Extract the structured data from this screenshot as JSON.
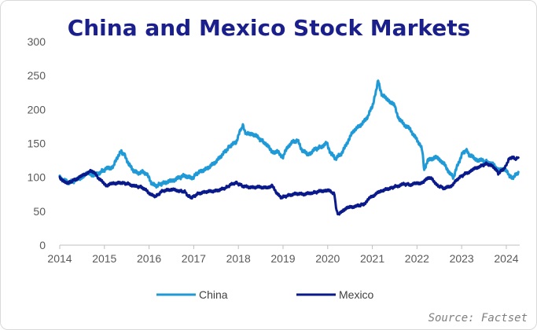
{
  "chart_data": {
    "type": "line",
    "title": "China and Mexico Stock Markets",
    "source": "Source: Factset",
    "xlim": [
      2014,
      2024.3
    ],
    "ylim": [
      0,
      300
    ],
    "x_ticks": [
      "2014",
      "2015",
      "2016",
      "2017",
      "2018",
      "2019",
      "2020",
      "2021",
      "2022",
      "2023",
      "2024"
    ],
    "y_ticks": [
      "0",
      "50",
      "100",
      "150",
      "200",
      "250",
      "300"
    ],
    "legend_position": "bottom",
    "grid": false,
    "series": [
      {
        "name": "China",
        "color": "#1f9ad6",
        "points": [
          [
            2014.0,
            100
          ],
          [
            2014.08,
            96
          ],
          [
            2014.2,
            92
          ],
          [
            2014.35,
            95
          ],
          [
            2014.5,
            101
          ],
          [
            2014.65,
            106
          ],
          [
            2014.78,
            103
          ],
          [
            2014.9,
            107
          ],
          [
            2015.05,
            113
          ],
          [
            2015.2,
            116
          ],
          [
            2015.3,
            131
          ],
          [
            2015.38,
            138
          ],
          [
            2015.45,
            133
          ],
          [
            2015.55,
            119
          ],
          [
            2015.65,
            110
          ],
          [
            2015.75,
            106
          ],
          [
            2015.85,
            108
          ],
          [
            2015.95,
            105
          ],
          [
            2016.05,
            92
          ],
          [
            2016.15,
            87
          ],
          [
            2016.3,
            91
          ],
          [
            2016.5,
            95
          ],
          [
            2016.65,
            99
          ],
          [
            2016.8,
            103
          ],
          [
            2016.95,
            98
          ],
          [
            2017.1,
            107
          ],
          [
            2017.3,
            113
          ],
          [
            2017.5,
            123
          ],
          [
            2017.7,
            138
          ],
          [
            2017.85,
            148
          ],
          [
            2017.95,
            152
          ],
          [
            2018.05,
            170
          ],
          [
            2018.1,
            176
          ],
          [
            2018.18,
            163
          ],
          [
            2018.3,
            165
          ],
          [
            2018.45,
            158
          ],
          [
            2018.6,
            150
          ],
          [
            2018.75,
            138
          ],
          [
            2018.88,
            137
          ],
          [
            2019.0,
            130
          ],
          [
            2019.1,
            145
          ],
          [
            2019.22,
            152
          ],
          [
            2019.32,
            155
          ],
          [
            2019.42,
            141
          ],
          [
            2019.55,
            133
          ],
          [
            2019.7,
            141
          ],
          [
            2019.85,
            145
          ],
          [
            2019.98,
            150
          ],
          [
            2020.08,
            134
          ],
          [
            2020.18,
            128
          ],
          [
            2020.28,
            133
          ],
          [
            2020.38,
            143
          ],
          [
            2020.5,
            160
          ],
          [
            2020.6,
            170
          ],
          [
            2020.7,
            175
          ],
          [
            2020.8,
            181
          ],
          [
            2020.9,
            190
          ],
          [
            2021.0,
            205
          ],
          [
            2021.08,
            225
          ],
          [
            2021.13,
            242
          ],
          [
            2021.22,
            220
          ],
          [
            2021.35,
            215
          ],
          [
            2021.5,
            205
          ],
          [
            2021.6,
            185
          ],
          [
            2021.72,
            178
          ],
          [
            2021.85,
            170
          ],
          [
            2021.95,
            160
          ],
          [
            2022.05,
            150
          ],
          [
            2022.12,
            140
          ],
          [
            2022.16,
            112
          ],
          [
            2022.25,
            125
          ],
          [
            2022.4,
            130
          ],
          [
            2022.5,
            127
          ],
          [
            2022.62,
            118
          ],
          [
            2022.75,
            105
          ],
          [
            2022.82,
            100
          ],
          [
            2022.92,
            120
          ],
          [
            2023.02,
            135
          ],
          [
            2023.1,
            140
          ],
          [
            2023.18,
            133
          ],
          [
            2023.3,
            127
          ],
          [
            2023.45,
            125
          ],
          [
            2023.6,
            122
          ],
          [
            2023.72,
            118
          ],
          [
            2023.85,
            110
          ],
          [
            2023.95,
            113
          ],
          [
            2024.05,
            105
          ],
          [
            2024.12,
            98
          ],
          [
            2024.2,
            103
          ],
          [
            2024.27,
            108
          ]
        ]
      },
      {
        "name": "Mexico",
        "color": "#0a1a8a",
        "points": [
          [
            2014.0,
            100
          ],
          [
            2014.1,
            93
          ],
          [
            2014.2,
            92
          ],
          [
            2014.35,
            97
          ],
          [
            2014.5,
            102
          ],
          [
            2014.65,
            108
          ],
          [
            2014.72,
            110
          ],
          [
            2014.82,
            103
          ],
          [
            2014.92,
            95
          ],
          [
            2015.05,
            88
          ],
          [
            2015.2,
            91
          ],
          [
            2015.4,
            92
          ],
          [
            2015.55,
            90
          ],
          [
            2015.7,
            87
          ],
          [
            2015.85,
            85
          ],
          [
            2015.95,
            80
          ],
          [
            2016.05,
            74
          ],
          [
            2016.15,
            72
          ],
          [
            2016.3,
            80
          ],
          [
            2016.5,
            82
          ],
          [
            2016.65,
            80
          ],
          [
            2016.8,
            79
          ],
          [
            2016.88,
            72
          ],
          [
            2016.95,
            70
          ],
          [
            2017.1,
            76
          ],
          [
            2017.3,
            79
          ],
          [
            2017.5,
            80
          ],
          [
            2017.7,
            84
          ],
          [
            2017.85,
            90
          ],
          [
            2017.95,
            92
          ],
          [
            2018.1,
            87
          ],
          [
            2018.3,
            85
          ],
          [
            2018.5,
            86
          ],
          [
            2018.65,
            84
          ],
          [
            2018.75,
            88
          ],
          [
            2018.85,
            78
          ],
          [
            2018.95,
            70
          ],
          [
            2019.1,
            73
          ],
          [
            2019.3,
            76
          ],
          [
            2019.5,
            75
          ],
          [
            2019.65,
            77
          ],
          [
            2019.8,
            79
          ],
          [
            2019.95,
            81
          ],
          [
            2020.08,
            79
          ],
          [
            2020.15,
            75
          ],
          [
            2020.2,
            50
          ],
          [
            2020.25,
            45
          ],
          [
            2020.35,
            52
          ],
          [
            2020.5,
            56
          ],
          [
            2020.65,
            58
          ],
          [
            2020.8,
            60
          ],
          [
            2020.95,
            70
          ],
          [
            2021.05,
            74
          ],
          [
            2021.2,
            80
          ],
          [
            2021.4,
            84
          ],
          [
            2021.55,
            87
          ],
          [
            2021.7,
            90
          ],
          [
            2021.85,
            89
          ],
          [
            2022.0,
            91
          ],
          [
            2022.15,
            93
          ],
          [
            2022.25,
            100
          ],
          [
            2022.35,
            97
          ],
          [
            2022.45,
            88
          ],
          [
            2022.6,
            84
          ],
          [
            2022.75,
            86
          ],
          [
            2022.85,
            93
          ],
          [
            2022.95,
            100
          ],
          [
            2023.1,
            106
          ],
          [
            2023.25,
            111
          ],
          [
            2023.4,
            116
          ],
          [
            2023.55,
            120
          ],
          [
            2023.65,
            118
          ],
          [
            2023.75,
            113
          ],
          [
            2023.82,
            106
          ],
          [
            2023.9,
            110
          ],
          [
            2023.98,
            115
          ],
          [
            2024.05,
            126
          ],
          [
            2024.12,
            130
          ],
          [
            2024.2,
            127
          ],
          [
            2024.27,
            129
          ]
        ]
      }
    ]
  }
}
